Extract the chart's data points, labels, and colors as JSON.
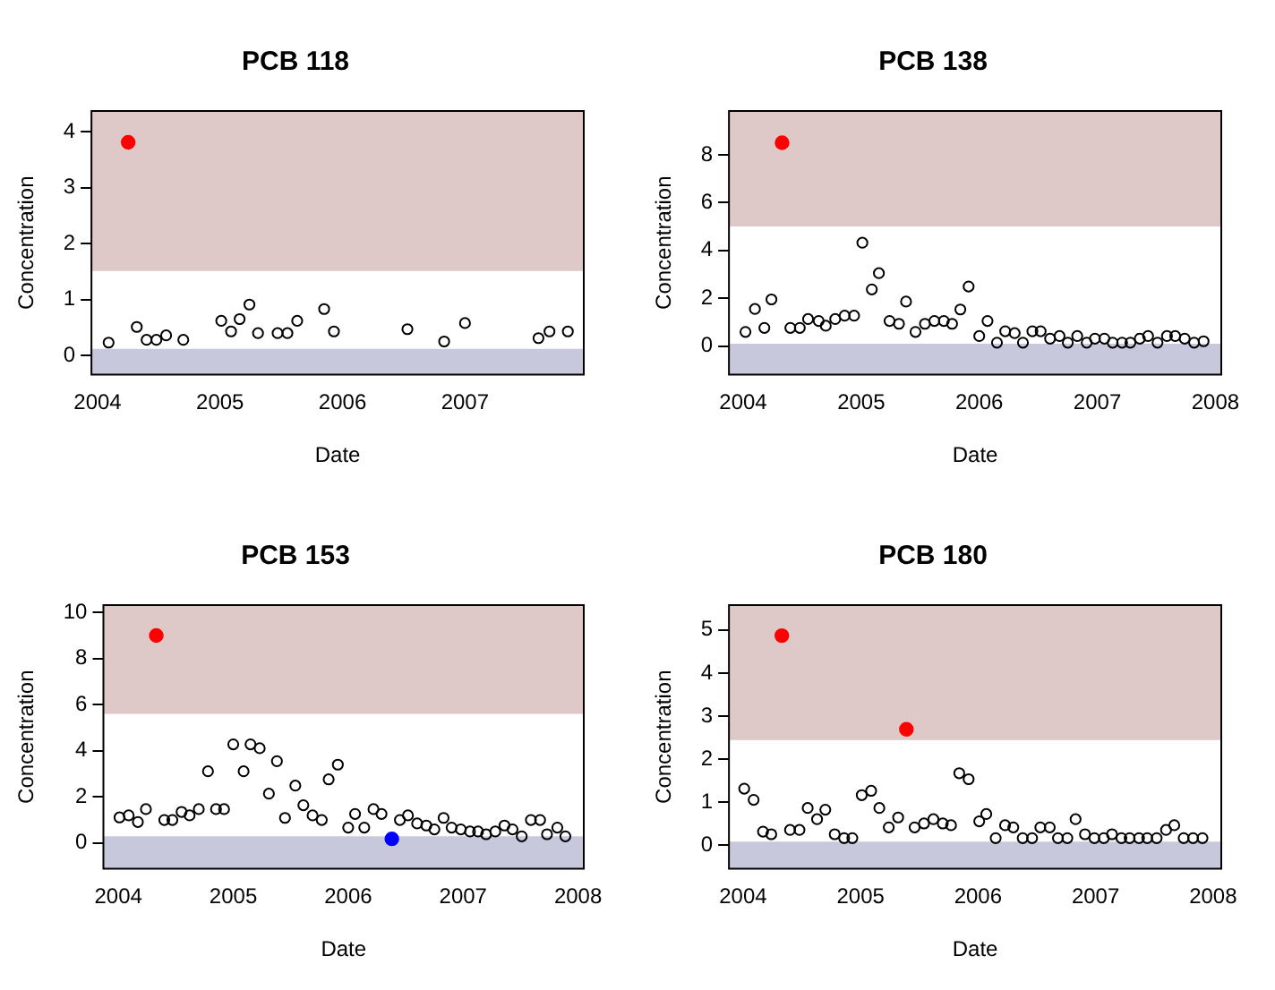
{
  "chart_data": [
    {
      "type": "scatter",
      "title": "PCB 118",
      "xlabel": "Date",
      "ylabel": "Concentration",
      "xlim": [
        2003.95,
        2007.97
      ],
      "xticks": [
        2004,
        2005,
        2006,
        2007
      ],
      "ylim": [
        -0.34,
        4.37
      ],
      "yticks": [
        0,
        1,
        2,
        3,
        4
      ],
      "marker": "circle",
      "bands": [
        {
          "axis": "y",
          "from": 1.51,
          "to": 4.37,
          "color": "#dfc8c8"
        },
        {
          "axis": "y",
          "from": -0.34,
          "to": 0.12,
          "color": "#c8c8dc"
        }
      ],
      "series": [
        {
          "color": "#000000",
          "x": [
            2004.09,
            2004.32,
            2004.4,
            2004.48,
            2004.56,
            2004.7,
            2005.01,
            2005.09,
            2005.16,
            2005.24,
            2005.31,
            2005.47,
            2005.55,
            2005.63,
            2005.85,
            2005.93,
            2006.53,
            2006.83,
            2007.0,
            2007.6,
            2007.69,
            2007.84
          ],
          "values": [
            0.23,
            0.51,
            0.28,
            0.28,
            0.36,
            0.28,
            0.62,
            0.43,
            0.65,
            0.91,
            0.4,
            0.4,
            0.4,
            0.62,
            0.83,
            0.43,
            0.47,
            0.25,
            0.58,
            0.31,
            0.43,
            0.43
          ]
        },
        {
          "color": "#ff0000",
          "x": [
            2004.25
          ],
          "values": [
            3.81
          ]
        }
      ]
    },
    {
      "type": "scatter",
      "title": "PCB 138",
      "xlabel": "Date",
      "ylabel": "Concentration",
      "xlim": [
        2003.88,
        2008.05
      ],
      "xticks": [
        2004,
        2005,
        2006,
        2007,
        2008
      ],
      "ylim": [
        -1.19,
        9.83
      ],
      "yticks": [
        0,
        2,
        4,
        6,
        8
      ],
      "marker": "circle",
      "bands": [
        {
          "axis": "y",
          "from": 5.0,
          "to": 9.83,
          "color": "#dfc8c8"
        },
        {
          "axis": "y",
          "from": -1.19,
          "to": 0.1,
          "color": "#c8c8dc"
        }
      ],
      "series": [
        {
          "color": "#000000",
          "x": [
            2004.02,
            2004.1,
            2004.18,
            2004.24,
            2004.4,
            2004.48,
            2004.55,
            2004.64,
            2004.7,
            2004.78,
            2004.86,
            2004.94,
            2005.01,
            2005.09,
            2005.15,
            2005.24,
            2005.32,
            2005.38,
            2005.46,
            2005.54,
            2005.62,
            2005.7,
            2005.77,
            2005.84,
            2005.91,
            2006.0,
            2006.07,
            2006.15,
            2006.22,
            2006.3,
            2006.37,
            2006.45,
            2006.52,
            2006.6,
            2006.68,
            2006.75,
            2006.83,
            2006.91,
            2006.98,
            2007.06,
            2007.13,
            2007.21,
            2007.28,
            2007.36,
            2007.43,
            2007.51,
            2007.59,
            2007.66,
            2007.74,
            2007.82,
            2007.9
          ],
          "values": [
            0.59,
            1.55,
            0.76,
            1.95,
            0.76,
            0.76,
            1.13,
            1.05,
            0.85,
            1.13,
            1.27,
            1.27,
            4.32,
            2.37,
            3.05,
            1.05,
            0.93,
            1.86,
            0.59,
            0.93,
            1.05,
            1.05,
            0.93,
            1.53,
            2.49,
            0.42,
            1.05,
            0.14,
            0.62,
            0.54,
            0.14,
            0.62,
            0.62,
            0.31,
            0.42,
            0.14,
            0.42,
            0.14,
            0.31,
            0.31,
            0.14,
            0.14,
            0.14,
            0.31,
            0.42,
            0.14,
            0.42,
            0.42,
            0.31,
            0.14,
            0.2
          ]
        },
        {
          "color": "#ff0000",
          "x": [
            2004.33
          ],
          "values": [
            8.5
          ]
        }
      ]
    },
    {
      "type": "scatter",
      "title": "PCB 153",
      "xlabel": "Date",
      "ylabel": "Concentration",
      "xlim": [
        2003.87,
        2008.05
      ],
      "xticks": [
        2004,
        2005,
        2006,
        2007,
        2008
      ],
      "ylim": [
        -1.11,
        10.32
      ],
      "yticks": [
        0,
        2,
        4,
        6,
        8,
        10
      ],
      "marker": "circle",
      "bands": [
        {
          "axis": "y",
          "from": 5.6,
          "to": 10.32,
          "color": "#dfc8c8"
        },
        {
          "axis": "y",
          "from": -1.11,
          "to": 0.29,
          "color": "#c8c8dc"
        }
      ],
      "series": [
        {
          "color": "#000000",
          "x": [
            2004.01,
            2004.09,
            2004.17,
            2004.24,
            2004.4,
            2004.47,
            2004.55,
            2004.62,
            2004.7,
            2004.78,
            2004.85,
            2004.92,
            2005.0,
            2005.09,
            2005.15,
            2005.23,
            2005.31,
            2005.38,
            2005.45,
            2005.54,
            2005.61,
            2005.69,
            2005.77,
            2005.83,
            2005.91,
            2006.0,
            2006.06,
            2006.14,
            2006.22,
            2006.29,
            2006.45,
            2006.52,
            2006.6,
            2006.68,
            2006.75,
            2006.83,
            2006.9,
            2006.98,
            2007.06,
            2007.13,
            2007.2,
            2007.28,
            2007.36,
            2007.43,
            2007.51,
            2007.59,
            2007.67,
            2007.73,
            2007.82,
            2007.89
          ],
          "values": [
            1.11,
            1.2,
            0.91,
            1.47,
            1.0,
            1.0,
            1.35,
            1.2,
            1.47,
            3.11,
            1.47,
            1.47,
            4.28,
            3.11,
            4.28,
            4.11,
            2.14,
            3.55,
            1.09,
            2.49,
            1.64,
            1.2,
            1.0,
            2.76,
            3.4,
            0.67,
            1.26,
            0.67,
            1.47,
            1.26,
            1.0,
            1.2,
            0.85,
            0.76,
            0.59,
            1.09,
            0.67,
            0.59,
            0.5,
            0.5,
            0.38,
            0.5,
            0.76,
            0.59,
            0.29,
            1.0,
            1.0,
            0.38,
            0.67,
            0.29
          ]
        },
        {
          "color": "#ff0000",
          "x": [
            2004.33
          ],
          "values": [
            9.0
          ]
        },
        {
          "color": "#0000ff",
          "x": [
            2006.38
          ],
          "values": [
            0.18
          ]
        }
      ]
    },
    {
      "type": "scatter",
      "title": "PCB 180",
      "xlabel": "Date",
      "ylabel": "Concentration",
      "xlim": [
        2003.88,
        2008.07
      ],
      "xticks": [
        2004,
        2005,
        2006,
        2007,
        2008
      ],
      "ylim": [
        -0.55,
        5.58
      ],
      "yticks": [
        0,
        1,
        2,
        3,
        4,
        5
      ],
      "marker": "circle",
      "bands": [
        {
          "axis": "y",
          "from": 2.44,
          "to": 5.58,
          "color": "#dfc8c8"
        },
        {
          "axis": "y",
          "from": -0.55,
          "to": 0.08,
          "color": "#c8c8dc"
        }
      ],
      "series": [
        {
          "color": "#000000",
          "x": [
            2004.01,
            2004.09,
            2004.17,
            2004.24,
            2004.4,
            2004.48,
            2004.55,
            2004.63,
            2004.7,
            2004.78,
            2004.86,
            2004.93,
            2005.01,
            2005.09,
            2005.16,
            2005.24,
            2005.32,
            2005.46,
            2005.54,
            2005.62,
            2005.7,
            2005.77,
            2005.84,
            2005.92,
            2006.01,
            2006.07,
            2006.15,
            2006.23,
            2006.3,
            2006.38,
            2006.46,
            2006.53,
            2006.61,
            2006.68,
            2006.76,
            2006.83,
            2006.91,
            2006.99,
            2007.07,
            2007.14,
            2007.22,
            2007.29,
            2007.37,
            2007.44,
            2007.52,
            2007.6,
            2007.67,
            2007.75,
            2007.83,
            2007.91
          ],
          "values": [
            1.31,
            1.05,
            0.31,
            0.25,
            0.35,
            0.35,
            0.86,
            0.6,
            0.82,
            0.25,
            0.16,
            0.16,
            1.16,
            1.26,
            0.86,
            0.41,
            0.64,
            0.41,
            0.5,
            0.6,
            0.5,
            0.46,
            1.67,
            1.53,
            0.55,
            0.72,
            0.16,
            0.46,
            0.41,
            0.16,
            0.16,
            0.41,
            0.41,
            0.16,
            0.16,
            0.6,
            0.25,
            0.16,
            0.16,
            0.25,
            0.16,
            0.16,
            0.16,
            0.16,
            0.16,
            0.35,
            0.46,
            0.16,
            0.16,
            0.16
          ]
        },
        {
          "color": "#ff0000",
          "x": [
            2004.33,
            2005.39
          ],
          "values": [
            4.87,
            2.69
          ]
        }
      ]
    }
  ]
}
